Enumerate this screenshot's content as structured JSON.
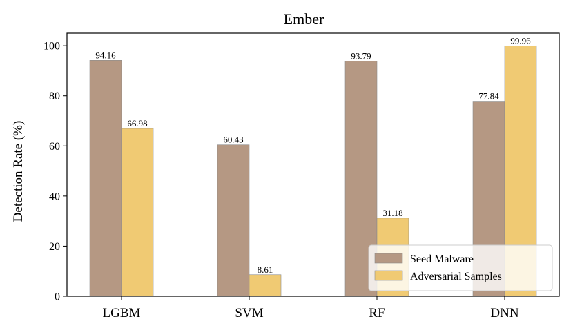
{
  "chart_data": {
    "type": "bar",
    "title": "Ember",
    "xlabel": "",
    "ylabel": "Detection Rate (%)",
    "categories": [
      "LGBM",
      "SVM",
      "RF",
      "DNN"
    ],
    "series": [
      {
        "name": "Seed Malware",
        "color": "#b59883",
        "values": [
          94.16,
          60.43,
          93.79,
          77.84
        ],
        "labels": [
          "94.16",
          "60.43",
          "93.79",
          "77.84"
        ]
      },
      {
        "name": "Adversarial Samples",
        "color": "#f0ca73",
        "values": [
          66.98,
          8.61,
          31.18,
          99.96
        ],
        "labels": [
          "66.98",
          "8.61",
          "31.18",
          "99.96"
        ]
      }
    ],
    "ylim": [
      0,
      105
    ],
    "yticks": [
      0,
      20,
      40,
      60,
      80,
      100
    ],
    "grid": false,
    "legend_position": "lower-right"
  }
}
